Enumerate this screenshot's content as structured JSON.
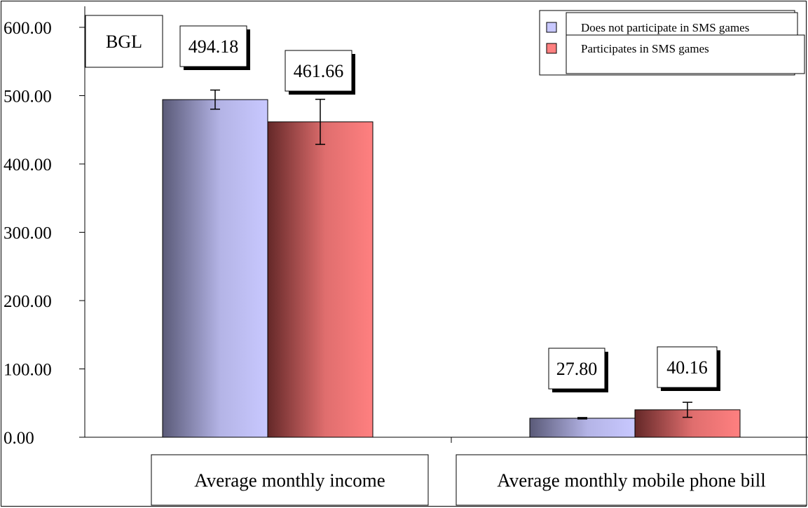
{
  "chart_data": {
    "type": "bar",
    "unit_label": "BGL",
    "categories": [
      "Average monthly income",
      "Average monthly mobile phone bill"
    ],
    "series": [
      {
        "name": "Does not participate in SMS games",
        "color": "#c8c8ff",
        "values": [
          494.18,
          27.8
        ],
        "value_labels": [
          "494.18",
          "27.80"
        ],
        "error": [
          14,
          1
        ]
      },
      {
        "name": "Participates in SMS games",
        "color": "#ff8080",
        "values": [
          461.66,
          40.16
        ],
        "value_labels": [
          "461.66",
          "40.16"
        ],
        "error": [
          33,
          11
        ]
      }
    ],
    "ylim": [
      0,
      600
    ],
    "yticks": [
      "0.00",
      "100.00",
      "200.00",
      "300.00",
      "400.00",
      "500.00",
      "600.00"
    ],
    "grid": false,
    "legend_position": "top-right",
    "error_bars": true
  }
}
